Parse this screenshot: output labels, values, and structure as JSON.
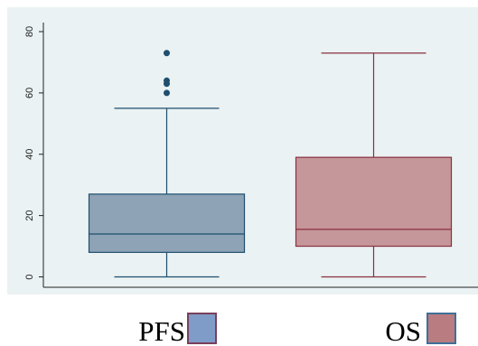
{
  "chart_data": {
    "type": "box",
    "categories": [
      "PFS",
      "OS"
    ],
    "y_ticks": [
      0,
      20,
      40,
      60,
      80
    ],
    "ylim": [
      0,
      82
    ],
    "grid": false,
    "legend_position": "bottom",
    "boxes": [
      {
        "name": "PFS",
        "min": 0,
        "q1": 8,
        "median": 14,
        "q3": 27,
        "max": 55,
        "outliers": [
          60,
          63,
          64,
          73
        ],
        "fill": "#8ea3b6",
        "stroke": "#1f4e6e",
        "outlier_color": "#1f4e6e"
      },
      {
        "name": "OS",
        "min": 0,
        "q1": 10,
        "median": 15.5,
        "q3": 39,
        "max": 73,
        "outliers": [],
        "fill": "#c5979a",
        "stroke": "#8b2f3f"
      }
    ],
    "legend": [
      {
        "label": "PFS",
        "swatch_fill": "#7f9bc8",
        "swatch_stroke": "#7a3f5a"
      },
      {
        "label": "OS",
        "swatch_fill": "#b97c80",
        "swatch_stroke": "#3f6f9a"
      }
    ],
    "colors": {
      "plot_background": "#eaf2f3",
      "axis": "#222222"
    }
  }
}
